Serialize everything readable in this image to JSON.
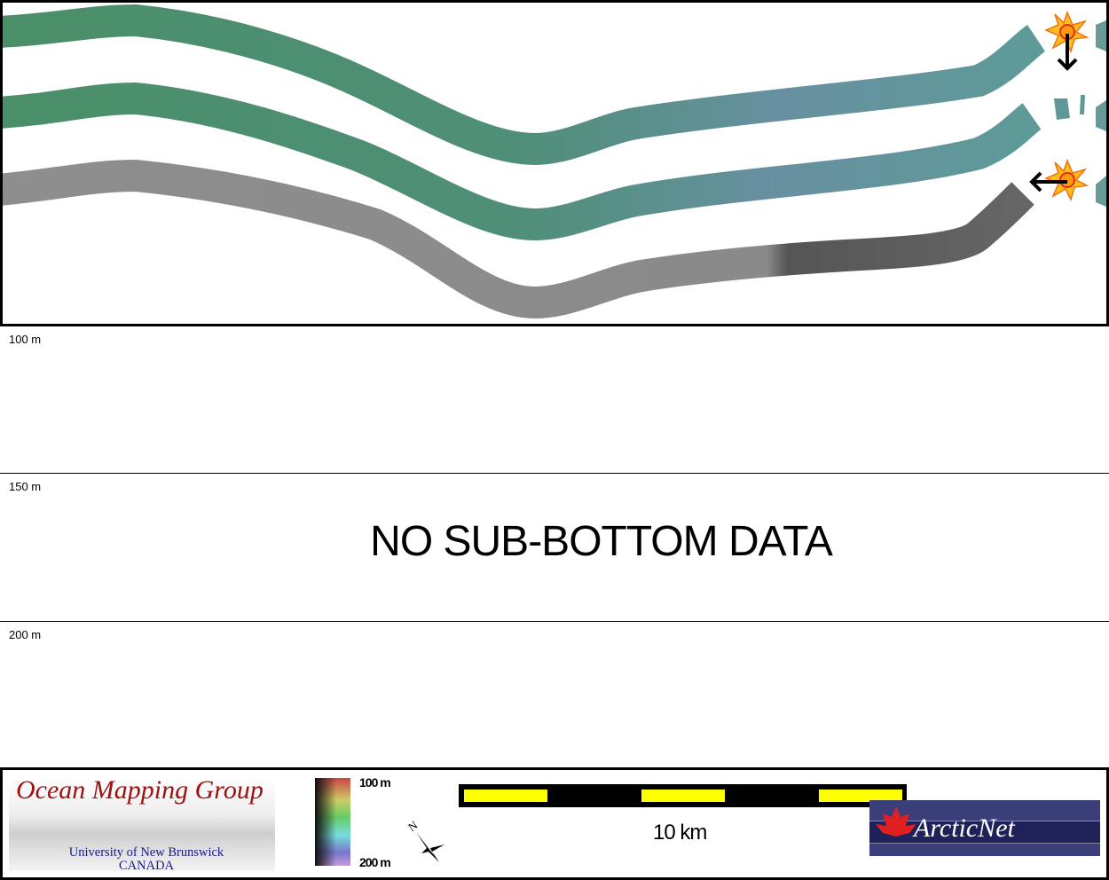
{
  "depth_labels": [
    "100 m",
    "150 m",
    "200 m"
  ],
  "message": "NO SUB-BOTTOM DATA",
  "footer": {
    "logo_left": {
      "title": "Ocean Mapping Group",
      "subtitle": "University of New Brunswick",
      "country": "CANADA"
    },
    "colorbar": {
      "top_label": "100 m",
      "bottom_label": "200 m"
    },
    "north_label": "N",
    "scale_label": "10 km",
    "logo_right": "ArcticNet"
  },
  "colors": {
    "swath_green": "#4f9270",
    "swath_teal": "#5f8f9a",
    "swath_gray": "#8a8a8a",
    "scale_yellow": "#ffff00"
  }
}
